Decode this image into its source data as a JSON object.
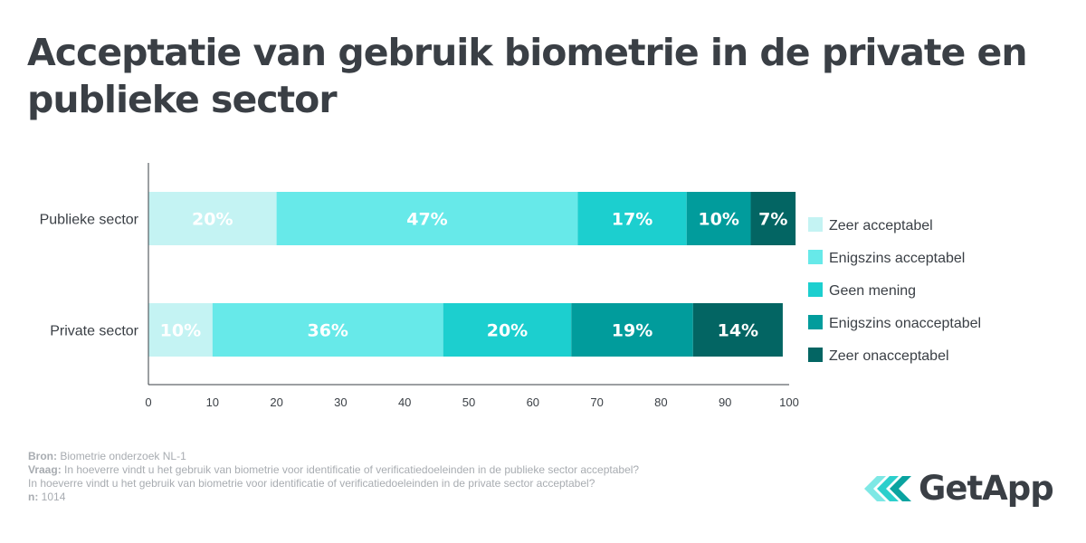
{
  "title": "Acceptatie van gebruik biometrie in de private en publieke sector",
  "chart_data": {
    "type": "bar",
    "orientation": "horizontal",
    "stacked": true,
    "categories": [
      "Publieke sector",
      "Private sector"
    ],
    "series": [
      {
        "name": "Zeer acceptabel",
        "color": "#c4f3f3",
        "values": [
          20,
          10
        ],
        "labels": [
          "20%",
          "10%"
        ]
      },
      {
        "name": "Enigszins acceptabel",
        "color": "#67e9e9",
        "values": [
          47,
          36
        ],
        "labels": [
          "47%",
          "36%"
        ]
      },
      {
        "name": "Geen mening",
        "color": "#1ccfcf",
        "values": [
          17,
          20
        ],
        "labels": [
          "17%",
          "20%"
        ]
      },
      {
        "name": "Enigszins onacceptabel",
        "color": "#019c9c",
        "values": [
          10,
          19
        ],
        "labels": [
          "10%",
          "19%"
        ]
      },
      {
        "name": "Zeer onacceptabel",
        "color": "#036563",
        "values": [
          7,
          14
        ],
        "labels": [
          "7%",
          "14%"
        ]
      }
    ],
    "xlim": [
      0,
      100
    ],
    "xticks": [
      "0",
      "10",
      "20",
      "30",
      "40",
      "50",
      "60",
      "70",
      "80",
      "90",
      "100"
    ],
    "legend": "right"
  },
  "footer": {
    "bron_label": "Bron:",
    "bron_text": "Biometrie onderzoek NL-1",
    "vraag_label": "Vraag:",
    "vraag_text_1": "In hoeverre vindt u het gebruik van biometrie voor identificatie of verificatiedoeleinden in de publieke sector acceptabel?",
    "vraag_text_2": "In hoeverre vindt u het gebruik van biometrie voor identificatie of verificatiedoeleinden in de private sector acceptabel?",
    "n_label": "n:",
    "n_text": "1014"
  },
  "logo": {
    "text": "GetApp",
    "colors": [
      "#7ee8e5",
      "#2ccfcc",
      "#0aa3a0"
    ]
  }
}
